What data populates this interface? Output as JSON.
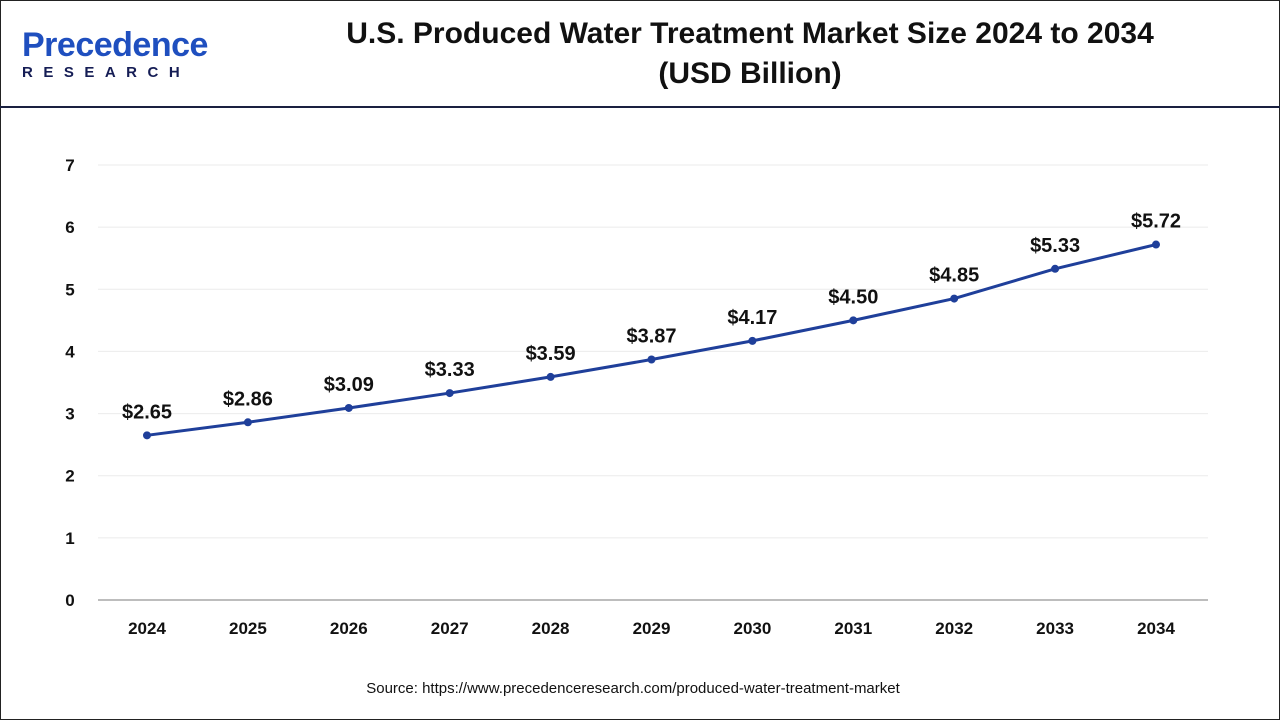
{
  "logo": {
    "line1": "Precedence",
    "line2": "RESEARCH"
  },
  "title_line1": "U.S. Produced Water Treatment Market Size 2024 to 2034",
  "title_line2": "(USD Billion)",
  "source": "Source: https://www.precedenceresearch.com/produced-water-treatment-market",
  "colors": {
    "line": "#1f3f9a",
    "grid": "#ebebeb",
    "axis": "#bdbdbd",
    "header_border": "#1a2040"
  },
  "chart_data": {
    "type": "line",
    "title": "U.S. Produced Water Treatment Market Size 2024 to 2034 (USD Billion)",
    "categories": [
      "2024",
      "2025",
      "2026",
      "2027",
      "2028",
      "2029",
      "2030",
      "2031",
      "2032",
      "2033",
      "2034"
    ],
    "values": [
      2.65,
      2.86,
      3.09,
      3.33,
      3.59,
      3.87,
      4.17,
      4.5,
      4.85,
      5.33,
      5.72
    ],
    "data_labels": [
      "$2.65",
      "$2.86",
      "$3.09",
      "$3.33",
      "$3.59",
      "$3.87",
      "$4.17",
      "$4.50",
      "$4.85",
      "$5.33",
      "$5.72"
    ],
    "yticks": [
      0,
      1,
      2,
      3,
      4,
      5,
      6,
      7
    ],
    "ylim": [
      0,
      7
    ],
    "grid": true,
    "markers": true
  }
}
